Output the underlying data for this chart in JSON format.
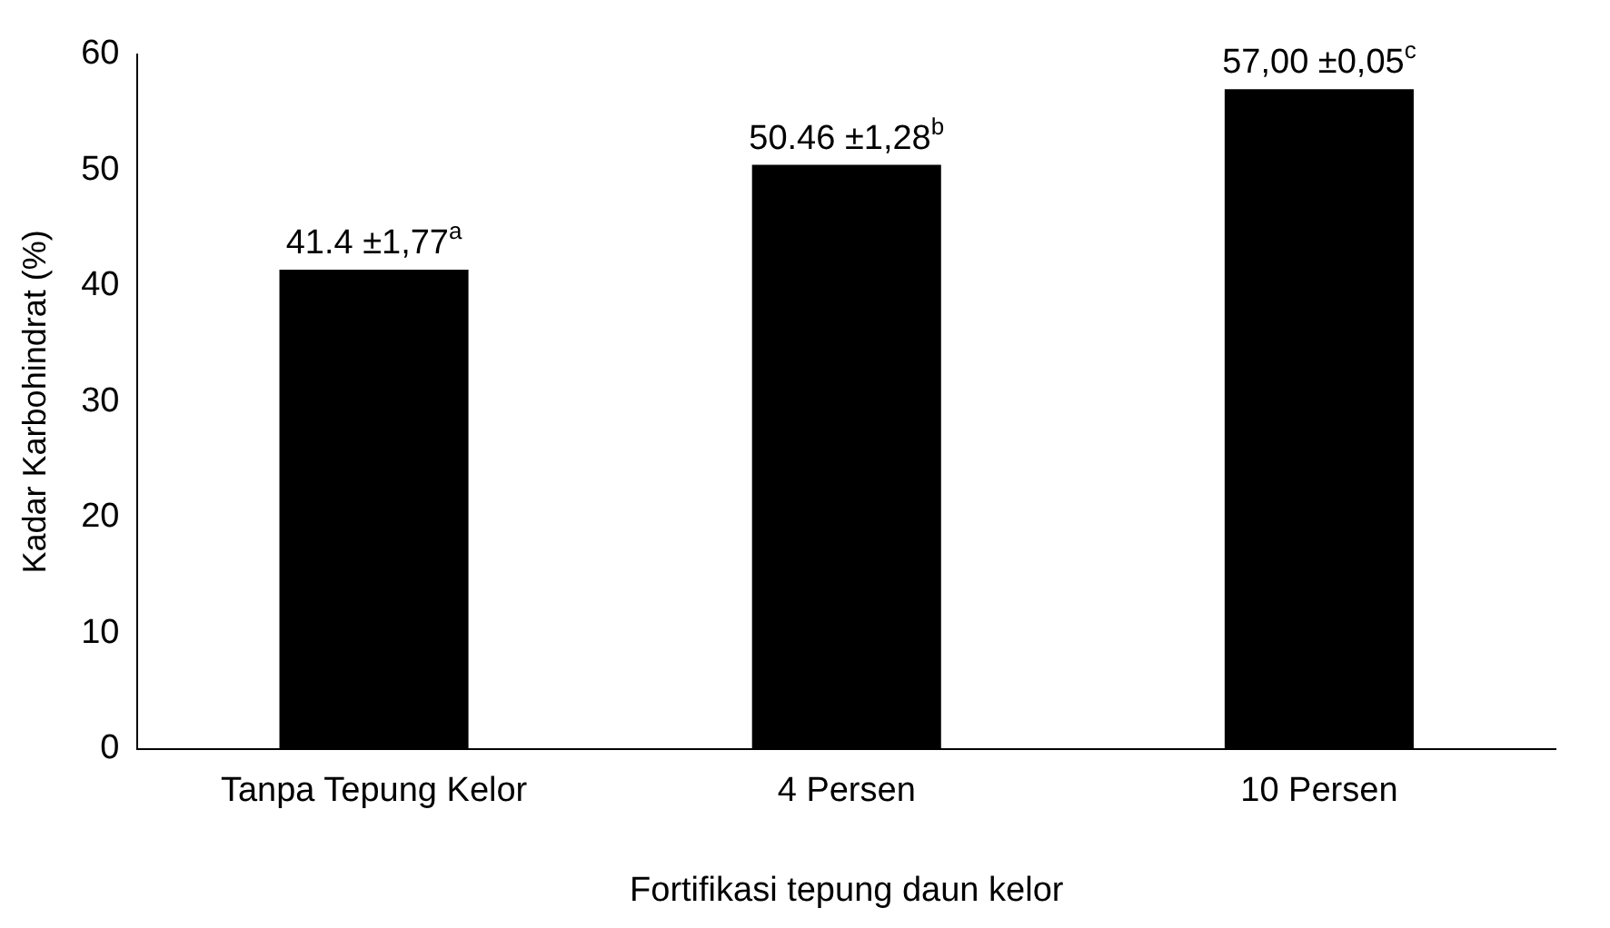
{
  "chart_data": {
    "type": "bar",
    "xlabel": "Fortifikasi tepung daun kelor",
    "ylabel": "Kadar Karbohindrat (%)",
    "categories": [
      "Tanpa Tepung Kelor",
      "4 Persen",
      "10 Persen"
    ],
    "values": [
      41.4,
      50.46,
      57.0
    ],
    "color": "#000000",
    "value_labels": [
      "41.4 ±1,77$^{a}$",
      "50.46 ±1,28$^{b}$",
      "57,00 ±0,05$^{c}$"
    ],
    "ylim": [
      0,
      60
    ],
    "yticks": [
      0,
      10,
      20,
      30,
      40,
      50,
      60
    ],
    "grid": false,
    "legend": false
  }
}
